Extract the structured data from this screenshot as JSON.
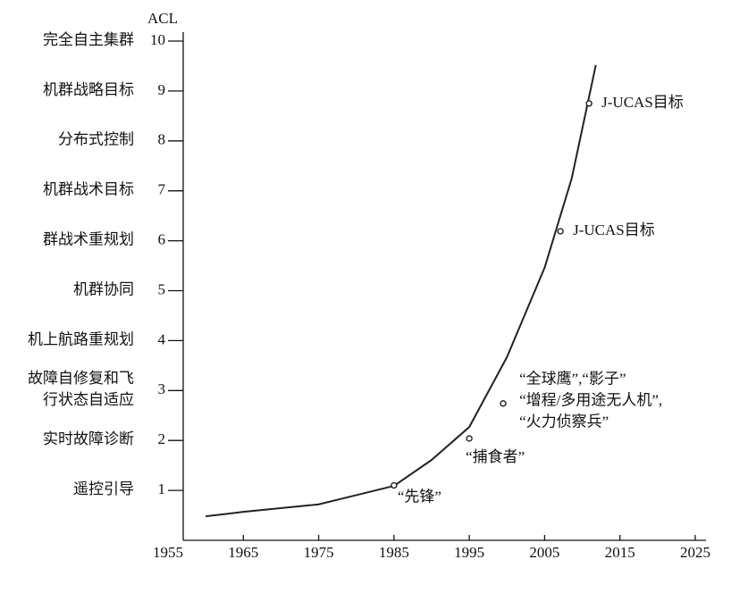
{
  "chart_data": {
    "type": "line",
    "ylabel": "ACL",
    "xlim": [
      1955,
      2025
    ],
    "xticks": [
      1955,
      1965,
      1975,
      1985,
      1995,
      2005,
      2015,
      2025
    ],
    "ylim": [
      0,
      10
    ],
    "yticks": [
      1,
      2,
      3,
      4,
      5,
      6,
      7,
      8,
      9,
      10
    ],
    "ylevels": [
      [
        "遥控引导"
      ],
      [
        "实时故障诊断"
      ],
      [
        "故障自修复和飞",
        "行状态自适应"
      ],
      [
        "机上航路重规划"
      ],
      [
        "机群协同"
      ],
      [
        "群战术重规划"
      ],
      [
        "机群战术目标"
      ],
      [
        "分布式控制"
      ],
      [
        "机群战略目标"
      ],
      [
        "完全自主集群"
      ]
    ],
    "series": [
      {
        "color": "#222222",
        "x": [
          1960,
          1965,
          1975,
          1985,
          1990,
          1995,
          2000,
          2005,
          2008.6,
          2011.8
        ],
        "values": [
          0.48,
          0.57,
          0.72,
          1.09,
          1.61,
          2.27,
          3.67,
          5.46,
          7.25,
          9.52
        ]
      }
    ],
    "points": [
      {
        "x": 1985,
        "y": 1.1,
        "label": [
          "“先锋”"
        ]
      },
      {
        "x": 1995,
        "y": 2.04,
        "label": [
          "“捕食者”"
        ]
      },
      {
        "x": 1999.5,
        "y": 2.74,
        "label": [
          "“全球鹰”,“影子”",
          "“增程/多用途无人机”,",
          "“火力侦察兵”"
        ]
      },
      {
        "x": 2007.1,
        "y": 6.19,
        "label": [
          "J-UCAS目标"
        ]
      },
      {
        "x": 2010.9,
        "y": 8.75,
        "label": [
          "J-UCAS目标"
        ]
      }
    ]
  }
}
